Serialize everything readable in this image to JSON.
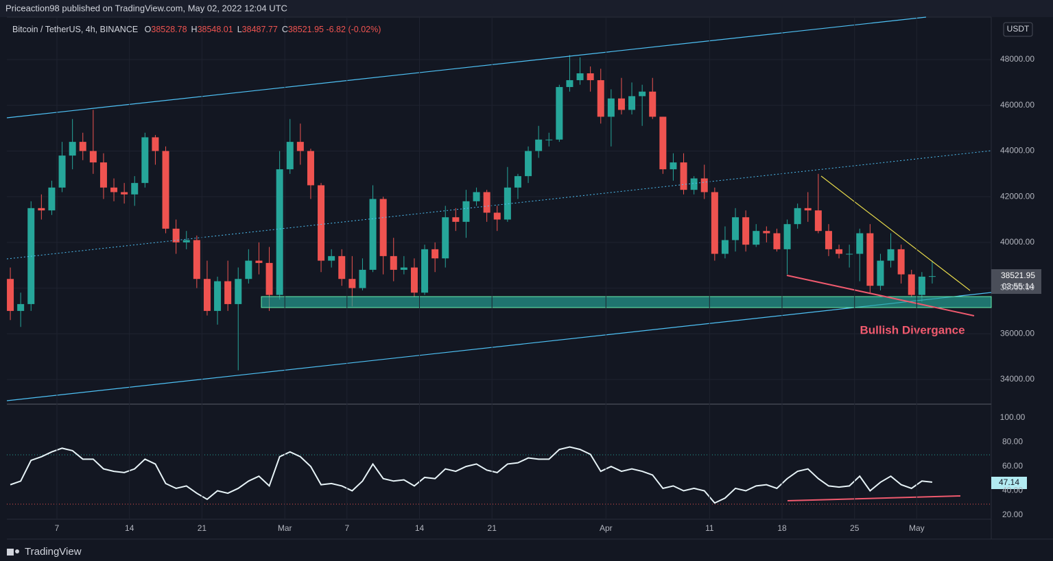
{
  "header": {
    "text": "Priceaction98 published on TradingView.com, May 02, 2022 12:04 UTC"
  },
  "footer": {
    "brand": "TradingView"
  },
  "chart_data": [
    {
      "type": "candlestick",
      "title": "Bitcoin / TetherUS, 4h, BINANCE",
      "legend_values": [
        {
          "key": "O",
          "value": 38528.78
        },
        {
          "key": "H",
          "value": 38548.01
        },
        {
          "key": "L",
          "value": 38487.77
        },
        {
          "key": "C",
          "value": 38521.95
        }
      ],
      "change": -6.82,
      "change_percent": {
        "value": -0.02,
        "label": "(-0.02%)"
      },
      "currency": "USDT",
      "countdown": "03:55:14",
      "annotation": "Bullish Divergance",
      "up_color": "#26a69a",
      "down_color": "#ef5350",
      "categories": [
        "Feb 2",
        "Feb 3",
        "Feb 4",
        "Feb 5",
        "Feb 6",
        "Feb 7",
        "Feb 8",
        "Feb 9",
        "Feb 10",
        "Feb 11",
        "Feb 12",
        "Feb 13",
        "Feb 14",
        "Feb 15",
        "Feb 16",
        "Feb 17",
        "Feb 18",
        "Feb 19",
        "Feb 20",
        "Feb 21",
        "Feb 22",
        "Feb 23",
        "Feb 24",
        "Feb 25",
        "Feb 26",
        "Feb 27",
        "Feb 28",
        "Mar 1",
        "Mar 2",
        "Mar 3",
        "Mar 4",
        "Mar 5",
        "Mar 6",
        "Mar 7",
        "Mar 8",
        "Mar 9",
        "Mar 10",
        "Mar 11",
        "Mar 12",
        "Mar 13",
        "Mar 14",
        "Mar 15",
        "Mar 16",
        "Mar 17",
        "Mar 18",
        "Mar 19",
        "Mar 20",
        "Mar 21",
        "Mar 22",
        "Mar 23",
        "Mar 24",
        "Mar 25",
        "Mar 26",
        "Mar 27",
        "Mar 28",
        "Mar 29",
        "Mar 30",
        "Mar 31",
        "Apr 1",
        "Apr 2",
        "Apr 3",
        "Apr 4",
        "Apr 5",
        "Apr 6",
        "Apr 7",
        "Apr 8",
        "Apr 9",
        "Apr 10",
        "Apr 11",
        "Apr 12",
        "Apr 13",
        "Apr 14",
        "Apr 15",
        "Apr 16",
        "Apr 17",
        "Apr 18",
        "Apr 19",
        "Apr 20",
        "Apr 21",
        "Apr 22",
        "Apr 23",
        "Apr 24",
        "Apr 25",
        "Apr 26",
        "Apr 27",
        "Apr 28",
        "Apr 29",
        "Apr 30",
        "May 1",
        "May 2"
      ],
      "open": [
        38400,
        37000,
        37300,
        41500,
        41400,
        42400,
        43800,
        44400,
        44000,
        43500,
        42400,
        42200,
        42100,
        42600,
        44600,
        44000,
        40600,
        40000,
        40100,
        38400,
        37000,
        38300,
        37300,
        38400,
        39200,
        39100,
        37700,
        43200,
        44400,
        44000,
        42500,
        39200,
        39400,
        38400,
        38000,
        38800,
        41900,
        39400,
        38800,
        38900,
        37800,
        39700,
        39300,
        41100,
        40900,
        41800,
        42200,
        41300,
        41000,
        42400,
        42900,
        44000,
        44500,
        44500,
        46800,
        47100,
        47400,
        47100,
        45500,
        46300,
        45800,
        46400,
        46600,
        45500,
        43200,
        43500,
        42300,
        42800,
        42200,
        39500,
        40100,
        41100,
        39900,
        40500,
        40400,
        39700,
        40800,
        41500,
        41400,
        40500,
        39700,
        39500,
        39500,
        40400,
        38100,
        39200,
        39700,
        38600,
        37700,
        38500
      ],
      "high": [
        38900,
        37800,
        41800,
        42100,
        42700,
        44400,
        45400,
        44800,
        45800,
        43900,
        42800,
        42600,
        42900,
        44800,
        44700,
        44200,
        41000,
        40500,
        40300,
        39200,
        38500,
        39200,
        38900,
        39700,
        40000,
        39800,
        44000,
        45400,
        45200,
        44100,
        42600,
        39700,
        39700,
        39400,
        39300,
        42500,
        42000,
        40200,
        39400,
        39300,
        39900,
        40000,
        41600,
        41500,
        42300,
        42400,
        42300,
        41600,
        43300,
        43000,
        44200,
        45100,
        44800,
        46900,
        48200,
        48100,
        47700,
        47600,
        46700,
        47200,
        47000,
        46900,
        47200,
        45500,
        43900,
        43900,
        42900,
        43400,
        42400,
        40700,
        41500,
        41400,
        40800,
        40700,
        40600,
        41000,
        41700,
        42200,
        43000,
        40800,
        39900,
        39900,
        40600,
        40800,
        39500,
        40400,
        39900,
        38800,
        38700,
        39200
      ],
      "low": [
        36600,
        36300,
        37000,
        41000,
        41200,
        42200,
        43200,
        43600,
        43000,
        41900,
        41800,
        41700,
        41600,
        42400,
        43400,
        40400,
        39500,
        39700,
        38000,
        36800,
        36400,
        37000,
        34400,
        38200,
        38600,
        37000,
        37500,
        43000,
        43400,
        41900,
        38700,
        38900,
        38100,
        37200,
        37900,
        38700,
        38600,
        38300,
        38600,
        37600,
        37700,
        38700,
        38900,
        40500,
        40200,
        41600,
        40900,
        40500,
        40900,
        41900,
        42600,
        43700,
        44200,
        44400,
        46600,
        46900,
        46600,
        45200,
        44200,
        45600,
        45600,
        45100,
        45400,
        43000,
        42700,
        42100,
        42100,
        41900,
        39200,
        39300,
        39600,
        39600,
        39800,
        40000,
        39600,
        38600,
        40600,
        40900,
        40400,
        39400,
        39300,
        38900,
        38300,
        37800,
        37900,
        38900,
        38200,
        37600,
        37400,
        38200
      ],
      "close": [
        37000,
        37300,
        41500,
        41400,
        42400,
        43800,
        44400,
        44000,
        43500,
        42400,
        42200,
        42100,
        42600,
        44600,
        44000,
        40600,
        40000,
        40100,
        38400,
        37000,
        38300,
        37300,
        38400,
        39200,
        39100,
        37700,
        43200,
        44400,
        44000,
        42500,
        39200,
        39400,
        38400,
        38000,
        38800,
        41900,
        39400,
        38800,
        38900,
        37800,
        39700,
        39300,
        41100,
        40900,
        41800,
        42200,
        41300,
        41000,
        42400,
        42900,
        44000,
        44500,
        44500,
        46800,
        47100,
        47400,
        47100,
        45500,
        46300,
        45800,
        46400,
        46600,
        45500,
        43200,
        43500,
        42300,
        42800,
        42200,
        39500,
        40100,
        41100,
        39900,
        40500,
        40400,
        39700,
        40800,
        41500,
        41400,
        40500,
        39700,
        39500,
        39500,
        40400,
        38100,
        39200,
        39700,
        38600,
        37700,
        38500,
        38521.95
      ],
      "xticks": [
        {
          "value": "Feb 7",
          "label": "7"
        },
        {
          "value": "Feb 14",
          "label": "14"
        },
        {
          "value": "Feb 21",
          "label": "21"
        },
        {
          "value": "Mar 1",
          "label": "Mar"
        },
        {
          "value": "Mar 7",
          "label": "7"
        },
        {
          "value": "Mar 14",
          "label": "14"
        },
        {
          "value": "Mar 21",
          "label": "21"
        },
        {
          "value": "Apr 1",
          "label": "Apr"
        },
        {
          "value": "Apr 11",
          "label": "11"
        },
        {
          "value": "Apr 18",
          "label": "18"
        },
        {
          "value": "Apr 25",
          "label": "25"
        },
        {
          "value": "May 1",
          "label": "May"
        }
      ],
      "ylim": [
        32920,
        49860
      ],
      "yticks": [
        {
          "value": 34000,
          "label": "34000.00"
        },
        {
          "value": 36000,
          "label": "36000.00"
        },
        {
          "value": 38000,
          "label": "38000.00"
        },
        {
          "value": 40000,
          "label": "40000.00"
        },
        {
          "value": 42000,
          "label": "42000.00"
        },
        {
          "value": 44000,
          "label": "44000.00"
        },
        {
          "value": 46000,
          "label": "46000.00"
        },
        {
          "value": 48000,
          "label": "48000.00"
        }
      ]
    },
    {
      "type": "line",
      "series": [
        {
          "name": "RSI",
          "color": "#e8f4f8",
          "values": [
            45,
            48,
            65,
            68,
            72,
            75,
            73,
            66,
            66,
            58,
            56,
            55,
            58,
            66,
            62,
            46,
            42,
            44,
            38,
            33,
            40,
            38,
            42,
            48,
            52,
            44,
            68,
            72,
            68,
            60,
            45,
            46,
            44,
            40,
            48,
            62,
            50,
            48,
            49,
            44,
            51,
            50,
            58,
            56,
            60,
            62,
            57,
            55,
            62,
            63,
            67,
            66,
            66,
            74,
            76,
            74,
            70,
            56,
            60,
            56,
            58,
            56,
            53,
            42,
            44,
            40,
            42,
            40,
            30,
            34,
            42,
            40,
            44,
            45,
            42,
            50,
            56,
            58,
            50,
            44,
            43,
            44,
            52,
            40,
            47,
            52,
            45,
            42,
            48,
            47.14
          ]
        }
      ],
      "ylim": [
        17.2,
        110.1
      ],
      "yticks": [
        {
          "value": 20,
          "label": "20.00"
        },
        {
          "value": 40,
          "label": "40.00"
        },
        {
          "value": 60,
          "label": "60.00"
        },
        {
          "value": 80,
          "label": "80.00"
        },
        {
          "value": 100,
          "label": "100.00"
        }
      ]
    }
  ]
}
